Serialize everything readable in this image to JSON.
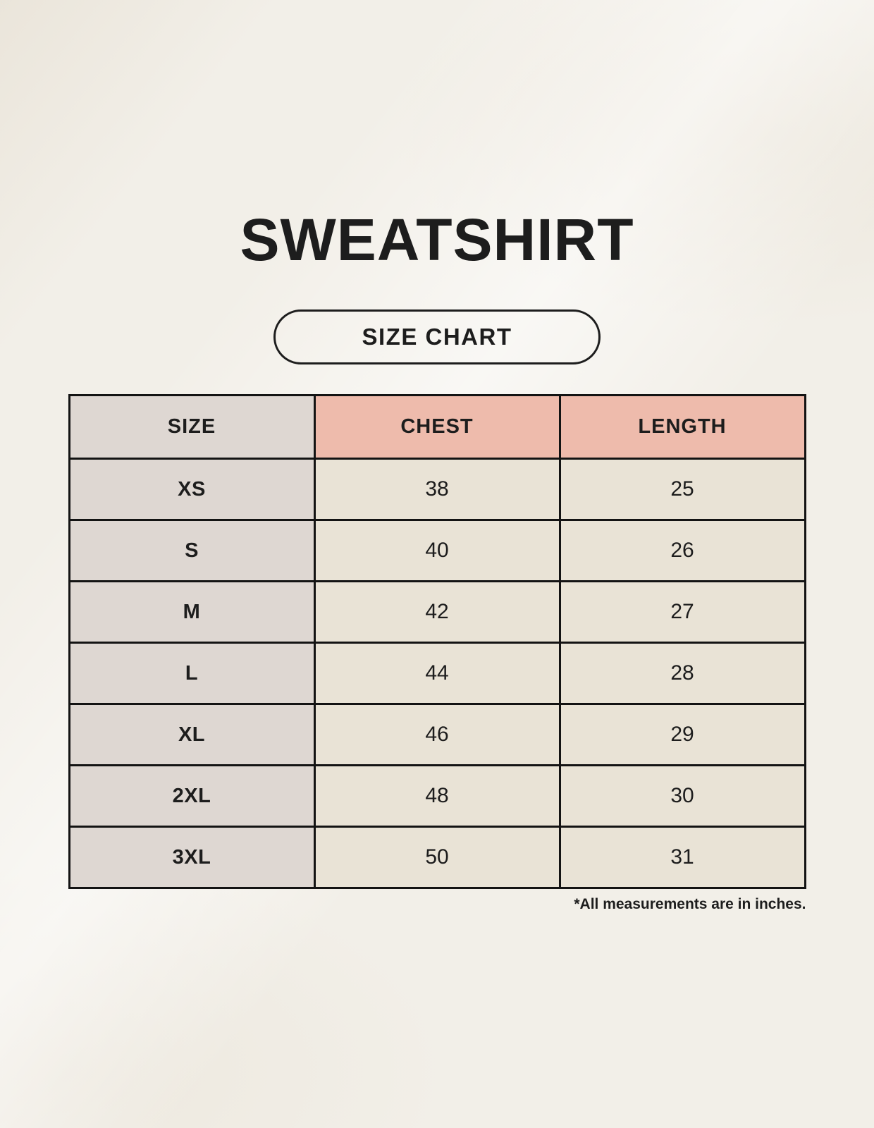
{
  "page": {
    "title": "SWEATSHIRT",
    "size_chart_button": "SIZE CHART",
    "footnote": "*All measurements are in inches."
  },
  "chart_data": {
    "type": "table",
    "title": "SWEATSHIRT SIZE CHART",
    "columns": [
      "SIZE",
      "CHEST",
      "LENGTH"
    ],
    "rows": [
      [
        "XS",
        "38",
        "25"
      ],
      [
        "S",
        "40",
        "26"
      ],
      [
        "M",
        "42",
        "27"
      ],
      [
        "L",
        "44",
        "28"
      ],
      [
        "XL",
        "46",
        "29"
      ],
      [
        "2XL",
        "48",
        "30"
      ],
      [
        "3XL",
        "50",
        "31"
      ]
    ],
    "units_note": "All measurements are in inches"
  },
  "colors": {
    "background": "#f2efe8",
    "accent_salmon": "#eebbac",
    "column_taupe": "#ded7d2",
    "cell_cream": "#e9e3d6",
    "border_black": "#131313",
    "text": "#1d1d1d"
  }
}
